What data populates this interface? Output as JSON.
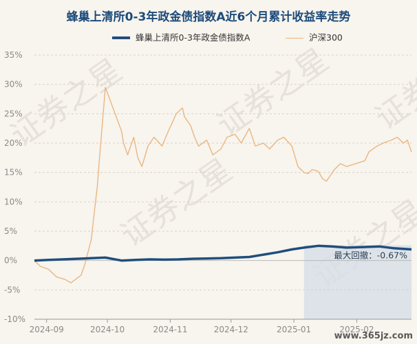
{
  "chart_data": {
    "type": "line",
    "title": "蜂巢上清所0-3年政金债指数A近6个月累计收益率走势",
    "x_tick_labels": [
      "2024-09",
      "2024-10",
      "2024-11",
      "2024-12",
      "2025-01",
      "2025-02"
    ],
    "x_range": [
      "2024-08-26",
      "2025-02-28"
    ],
    "y_tick_labels": [
      "35%",
      "30%",
      "25%",
      "20%",
      "15%",
      "10%",
      "5%",
      "0%",
      "-5%",
      "-10%"
    ],
    "ylim": [
      -10,
      35
    ],
    "y_unit": "%",
    "grid": "horizontal dashed",
    "legend_position": "top",
    "series": [
      {
        "name": "蜂巢上清所0-3年政金债指数A",
        "color": "#1f4e7c",
        "x": [
          "2024-08-26",
          "2024-09-02",
          "2024-09-09",
          "2024-09-16",
          "2024-09-23",
          "2024-09-30",
          "2024-10-08",
          "2024-10-15",
          "2024-10-22",
          "2024-10-29",
          "2024-11-05",
          "2024-11-12",
          "2024-11-19",
          "2024-11-26",
          "2024-12-03",
          "2024-12-10",
          "2024-12-17",
          "2024-12-24",
          "2024-12-31",
          "2025-01-06",
          "2025-01-13",
          "2025-01-20",
          "2025-01-27",
          "2025-02-05",
          "2025-02-12",
          "2025-02-19",
          "2025-02-28"
        ],
        "values": [
          0.0,
          0.1,
          0.2,
          0.3,
          0.4,
          0.5,
          0.0,
          0.1,
          0.2,
          0.15,
          0.2,
          0.3,
          0.35,
          0.4,
          0.5,
          0.6,
          1.0,
          1.4,
          1.9,
          2.2,
          2.5,
          2.4,
          2.2,
          2.3,
          2.4,
          2.1,
          1.9
        ]
      },
      {
        "name": "沪深300",
        "color": "#e8b37a",
        "x": [
          "2024-08-26",
          "2024-08-29",
          "2024-09-02",
          "2024-09-06",
          "2024-09-10",
          "2024-09-13",
          "2024-09-18",
          "2024-09-20",
          "2024-09-23",
          "2024-09-24",
          "2024-09-26",
          "2024-09-27",
          "2024-09-30",
          "2024-10-08",
          "2024-10-09",
          "2024-10-11",
          "2024-10-14",
          "2024-10-16",
          "2024-10-18",
          "2024-10-21",
          "2024-10-24",
          "2024-10-28",
          "2024-10-31",
          "2024-11-04",
          "2024-11-07",
          "2024-11-08",
          "2024-11-11",
          "2024-11-13",
          "2024-11-15",
          "2024-11-19",
          "2024-11-22",
          "2024-11-26",
          "2024-11-29",
          "2024-12-03",
          "2024-12-06",
          "2024-12-10",
          "2024-12-13",
          "2024-12-17",
          "2024-12-20",
          "2024-12-24",
          "2024-12-27",
          "2024-12-31",
          "2025-01-03",
          "2025-01-06",
          "2025-01-08",
          "2025-01-10",
          "2025-01-13",
          "2025-01-15",
          "2025-01-17",
          "2025-01-21",
          "2025-01-24",
          "2025-01-27",
          "2025-02-05",
          "2025-02-07",
          "2025-02-11",
          "2025-02-14",
          "2025-02-18",
          "2025-02-21",
          "2025-02-24",
          "2025-02-26",
          "2025-02-28"
        ],
        "values": [
          0.0,
          -1.0,
          -1.5,
          -2.8,
          -3.2,
          -3.8,
          -2.5,
          -0.5,
          3.5,
          6.5,
          12.5,
          17.0,
          29.5,
          22.0,
          20.0,
          18.0,
          21.0,
          17.5,
          16.0,
          19.5,
          21.0,
          19.5,
          22.0,
          25.0,
          26.0,
          24.5,
          23.0,
          21.0,
          19.5,
          20.5,
          18.0,
          19.0,
          21.0,
          21.5,
          20.0,
          22.5,
          19.5,
          20.0,
          19.0,
          20.5,
          21.0,
          19.5,
          16.0,
          15.0,
          14.8,
          15.5,
          15.2,
          14.0,
          13.5,
          15.5,
          16.5,
          16.0,
          17.0,
          18.5,
          19.5,
          20.0,
          20.5,
          21.0,
          20.0,
          20.5,
          18.5
        ]
      }
    ],
    "annotations": [
      {
        "text": "最大回撤：-0.67%",
        "shaded_from": "2025-01-06",
        "shaded_to": "2025-02-28"
      }
    ]
  },
  "watermark": "证券之星",
  "site_label": "www.365jz.com"
}
